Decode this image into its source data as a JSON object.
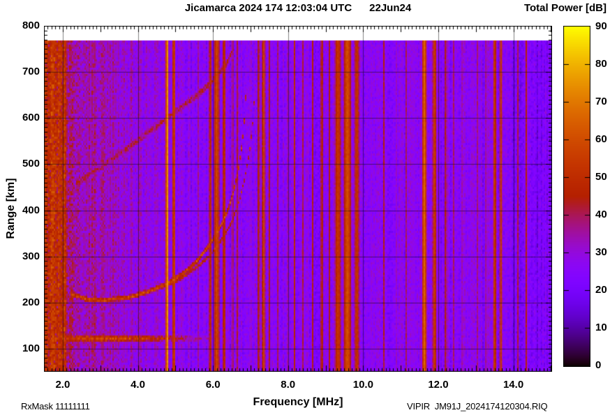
{
  "title": "Jicamarca 2024 174 12:03:04 UTC      22Jun24",
  "colorbar_title": "Total Power [dB]",
  "xlabel": "Frequency [MHz]",
  "ylabel": "Range [km]",
  "footer_left": "RxMask 11111111",
  "footer_right": "VIPIR  JM91J_2024174120304.RIQ",
  "chart_data": {
    "type": "heatmap",
    "title": "Jicamarca 2024 174 12:03:04 UTC 22Jun24",
    "description": "VIPIR ionogram: total received power (dB) vs sounding frequency and virtual range. Purple speckle background noise, vertical RFI stripes, E-region echo band near 120 km, F-layer O/X echo traces asymptoting near 6.9/7.1 MHz, and a faint oblique trace rising from 460 to 750 km.",
    "x": {
      "label": "Frequency [MHz]",
      "min": 1.5,
      "max": 15.03,
      "tick_values": [
        2,
        4,
        6,
        8,
        10,
        12,
        14
      ],
      "tick_labels": [
        "2.0",
        "4.0",
        "6.0",
        "8.0",
        "10.0",
        "12.0",
        "14.0"
      ],
      "minor_tick_step": 0.1,
      "grid_step": 2
    },
    "y": {
      "label": "Range [km]",
      "min": 50,
      "max": 800,
      "data_max": 768,
      "tick_values": [
        100,
        200,
        300,
        400,
        500,
        600,
        700,
        800
      ],
      "tick_labels": [
        "100",
        "200",
        "300",
        "400",
        "500",
        "600",
        "700",
        "800"
      ],
      "minor_tick_step": 10,
      "grid_step": 100
    },
    "colorbar": {
      "label": "Total Power [dB]",
      "min": 0,
      "max": 90,
      "tick_values": [
        0,
        10,
        20,
        30,
        40,
        50,
        60,
        70,
        80,
        90
      ],
      "tick_labels": [
        "0",
        "10",
        "20",
        "30",
        "40",
        "50",
        "60",
        "70",
        "80",
        "90"
      ],
      "palette": "gnuplot pm3d rgbformulae 7,5,15 (black-violet-purple-red-orange-yellow)",
      "palette_formula": "x=dB/90; r=sqrt(x); g=x^3; b=max(0,sin(2*pi*x))",
      "palette_stops": [
        {
          "value": 0,
          "color": "#000000"
        },
        {
          "value": 10,
          "color": "#55023f8c"
        },
        {
          "value": 20,
          "color": "#7803f4"
        },
        {
          "value": 30,
          "color": "#9309dd"
        },
        {
          "value": 40,
          "color": "#ab1663"
        },
        {
          "value": 50,
          "color": "#be2c00"
        },
        {
          "value": 60,
          "color": "#cf4b00"
        },
        {
          "value": 70,
          "color": "#de7500"
        },
        {
          "value": 80,
          "color": "#eeac00"
        },
        {
          "value": 90,
          "color": "#ffff00"
        }
      ]
    },
    "background_noise": {
      "base_dB": 19.5,
      "speckle_dB": 10,
      "galactic_noise_below_MHz": 5.0,
      "galactic_slope_dB_per_MHz": 3.6,
      "left_edge_boost_below_MHz": 2.08,
      "left_edge_boost_dB": 9,
      "quiet_above_MHz": 13.95,
      "quiet_drop_dB": 4,
      "column_streak_dB": 5
    },
    "rfi_stripes": {
      "columns": [
        "freq_MHz",
        "sigma_MHz",
        "peak_dB"
      ],
      "rows": [
        [
          4.78,
          0.035,
          77
        ],
        [
          4.96,
          0.04,
          58
        ],
        [
          5.62,
          0.02,
          44
        ],
        [
          5.93,
          0.035,
          52
        ],
        [
          6.1,
          0.075,
          57
        ],
        [
          6.3,
          0.04,
          52
        ],
        [
          6.52,
          0.025,
          47
        ],
        [
          6.64,
          0.02,
          45
        ],
        [
          7.0,
          0.02,
          42
        ],
        [
          7.22,
          0.03,
          49
        ],
        [
          7.35,
          0.045,
          56
        ],
        [
          7.5,
          0.02,
          45
        ],
        [
          7.72,
          0.02,
          41
        ],
        [
          8.0,
          0.02,
          43
        ],
        [
          8.17,
          0.03,
          49
        ],
        [
          8.4,
          0.02,
          42
        ],
        [
          8.65,
          0.025,
          45
        ],
        [
          8.9,
          0.035,
          49
        ],
        [
          9.1,
          0.03,
          45
        ],
        [
          9.33,
          0.09,
          53
        ],
        [
          9.58,
          0.1,
          60
        ],
        [
          9.83,
          0.07,
          52
        ],
        [
          10.2,
          0.02,
          41
        ],
        [
          10.55,
          0.025,
          43
        ],
        [
          10.9,
          0.02,
          41
        ],
        [
          11.15,
          0.02,
          40
        ],
        [
          11.35,
          0.02,
          43
        ],
        [
          11.63,
          0.06,
          65
        ],
        [
          11.9,
          0.055,
          55
        ],
        [
          12.2,
          0.03,
          47
        ],
        [
          12.4,
          0.02,
          43
        ],
        [
          12.62,
          0.02,
          41
        ],
        [
          13.05,
          0.02,
          41
        ],
        [
          13.28,
          0.025,
          43
        ],
        [
          13.5,
          0.045,
          55
        ],
        [
          13.67,
          0.04,
          53
        ],
        [
          14.12,
          0.02,
          41
        ],
        [
          14.35,
          0.03,
          45
        ]
      ]
    },
    "echo_traces": {
      "e_region_band": {
        "range_km": 122,
        "range_sigma_km": 8,
        "peak_dB": 56,
        "peak_freq_MHz": 3.1,
        "freq_sigma_MHz": 2.6,
        "freq_cutoff_MHz": 9.9
      },
      "f_layer_o_trace": {
        "peak_dB": 56,
        "range_sigma_km": 6,
        "critical_freq_MHz": 6.9,
        "points_freq_range": [
          [
            2.2,
            218
          ],
          [
            2.7,
            206
          ],
          [
            3.2,
            205
          ],
          [
            3.8,
            212
          ],
          [
            4.3,
            224
          ],
          [
            4.8,
            242
          ],
          [
            5.2,
            262
          ],
          [
            5.6,
            292
          ],
          [
            5.95,
            330
          ],
          [
            6.2,
            365
          ],
          [
            6.4,
            400
          ],
          [
            6.55,
            440
          ],
          [
            6.68,
            490
          ],
          [
            6.78,
            545
          ],
          [
            6.84,
            600
          ],
          [
            6.88,
            655
          ]
        ]
      },
      "f_layer_x_trace": {
        "peak_dB": 48,
        "range_sigma_km": 5,
        "critical_freq_MHz": 7.1,
        "points_freq_range": [
          [
            4.6,
            232
          ],
          [
            5.1,
            250
          ],
          [
            5.5,
            272
          ],
          [
            5.9,
            300
          ],
          [
            6.25,
            338
          ],
          [
            6.5,
            375
          ],
          [
            6.7,
            420
          ],
          [
            6.85,
            470
          ],
          [
            6.97,
            525
          ],
          [
            7.05,
            580
          ],
          [
            7.1,
            640
          ]
        ]
      },
      "oblique_trace": {
        "peak_dB": 40,
        "range_sigma_km": 11,
        "points_freq_range": [
          [
            2.35,
            458
          ],
          [
            2.8,
            482
          ],
          [
            3.4,
            516
          ],
          [
            4.0,
            552
          ],
          [
            4.6,
            588
          ],
          [
            5.2,
            626
          ],
          [
            5.7,
            658
          ],
          [
            6.1,
            690
          ],
          [
            6.35,
            716
          ],
          [
            6.55,
            750
          ]
        ]
      }
    },
    "grid_color": "rgba(10,10,10,0.5)",
    "frame_color": "#000000"
  }
}
